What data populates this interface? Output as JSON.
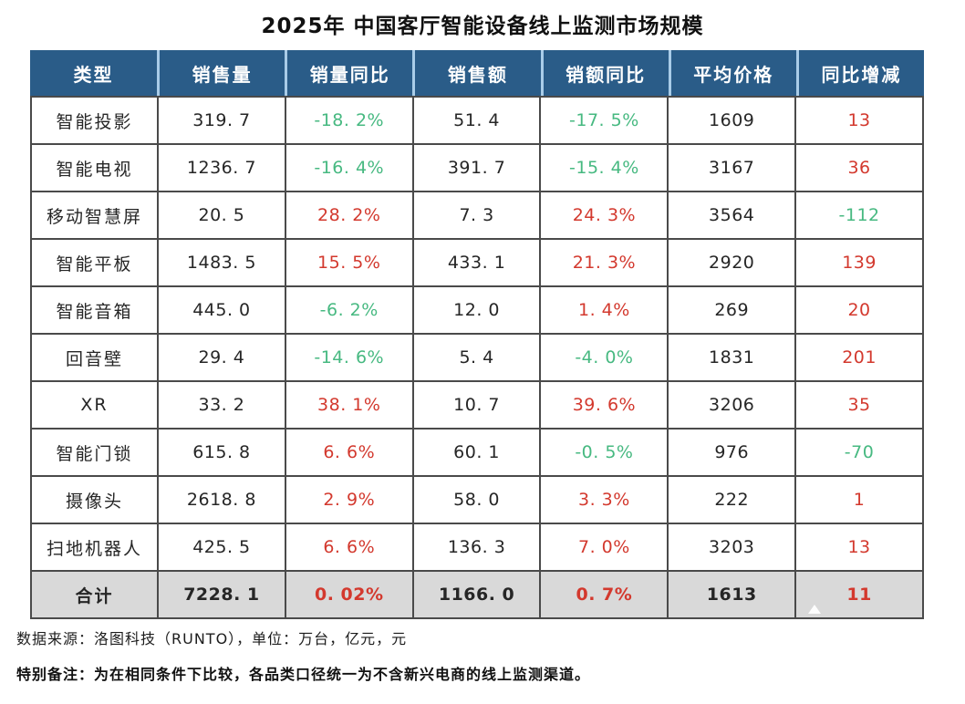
{
  "title": "2025年 中国客厅智能设备线上监测市场规模",
  "colors": {
    "header_bg": "#2A5C88",
    "header_text": "#FFFFFF",
    "header_divider": "#A9CCE8",
    "grid_border": "#4A4A4A",
    "total_row_bg": "#D9D9D9",
    "text": "#262626",
    "positive_red": "#D3392E",
    "negative_green": "#47B981"
  },
  "table": {
    "columns": [
      "类型",
      "销售量",
      "销量同比",
      "销售额",
      "销额同比",
      "平均价格",
      "同比增减"
    ],
    "rows": [
      {
        "label": "智能投影",
        "is_total": false,
        "cells": [
          {
            "text": "319. 7",
            "color": "dark"
          },
          {
            "text": "-18. 2%",
            "color": "green"
          },
          {
            "text": "51. 4",
            "color": "dark"
          },
          {
            "text": "-17. 5%",
            "color": "green"
          },
          {
            "text": "1609",
            "color": "dark"
          },
          {
            "text": "13",
            "color": "red"
          }
        ]
      },
      {
        "label": "智能电视",
        "is_total": false,
        "cells": [
          {
            "text": "1236. 7",
            "color": "dark"
          },
          {
            "text": "-16. 4%",
            "color": "green"
          },
          {
            "text": "391. 7",
            "color": "dark"
          },
          {
            "text": "-15. 4%",
            "color": "green"
          },
          {
            "text": "3167",
            "color": "dark"
          },
          {
            "text": "36",
            "color": "red"
          }
        ]
      },
      {
        "label": "移动智慧屏",
        "is_total": false,
        "cells": [
          {
            "text": "20. 5",
            "color": "dark"
          },
          {
            "text": "28. 2%",
            "color": "red"
          },
          {
            "text": "7. 3",
            "color": "dark"
          },
          {
            "text": "24. 3%",
            "color": "red"
          },
          {
            "text": "3564",
            "color": "dark"
          },
          {
            "text": "-112",
            "color": "green"
          }
        ]
      },
      {
        "label": "智能平板",
        "is_total": false,
        "cells": [
          {
            "text": "1483. 5",
            "color": "dark"
          },
          {
            "text": "15. 5%",
            "color": "red"
          },
          {
            "text": "433. 1",
            "color": "dark"
          },
          {
            "text": "21. 3%",
            "color": "red"
          },
          {
            "text": "2920",
            "color": "dark"
          },
          {
            "text": "139",
            "color": "red"
          }
        ]
      },
      {
        "label": "智能音箱",
        "is_total": false,
        "cells": [
          {
            "text": "445. 0",
            "color": "dark"
          },
          {
            "text": "-6. 2%",
            "color": "green"
          },
          {
            "text": "12. 0",
            "color": "dark"
          },
          {
            "text": "1. 4%",
            "color": "red"
          },
          {
            "text": "269",
            "color": "dark"
          },
          {
            "text": "20",
            "color": "red"
          }
        ]
      },
      {
        "label": "回音壁",
        "is_total": false,
        "cells": [
          {
            "text": "29. 4",
            "color": "dark"
          },
          {
            "text": "-14. 6%",
            "color": "green"
          },
          {
            "text": "5. 4",
            "color": "dark"
          },
          {
            "text": "-4. 0%",
            "color": "green"
          },
          {
            "text": "1831",
            "color": "dark"
          },
          {
            "text": "201",
            "color": "red"
          }
        ]
      },
      {
        "label": "XR",
        "is_total": false,
        "cells": [
          {
            "text": "33. 2",
            "color": "dark"
          },
          {
            "text": "38. 1%",
            "color": "red"
          },
          {
            "text": "10. 7",
            "color": "dark"
          },
          {
            "text": "39. 6%",
            "color": "red"
          },
          {
            "text": "3206",
            "color": "dark"
          },
          {
            "text": "35",
            "color": "red"
          }
        ]
      },
      {
        "label": "智能门锁",
        "is_total": false,
        "cells": [
          {
            "text": "615. 8",
            "color": "dark"
          },
          {
            "text": "6. 6%",
            "color": "red"
          },
          {
            "text": "60. 1",
            "color": "dark"
          },
          {
            "text": "-0. 5%",
            "color": "green"
          },
          {
            "text": "976",
            "color": "dark"
          },
          {
            "text": "-70",
            "color": "green"
          }
        ]
      },
      {
        "label": "摄像头",
        "is_total": false,
        "cells": [
          {
            "text": "2618. 8",
            "color": "dark"
          },
          {
            "text": "2. 9%",
            "color": "red"
          },
          {
            "text": "58. 0",
            "color": "dark"
          },
          {
            "text": "3. 3%",
            "color": "red"
          },
          {
            "text": "222",
            "color": "dark"
          },
          {
            "text": "1",
            "color": "red"
          }
        ]
      },
      {
        "label": "扫地机器人",
        "is_total": false,
        "cells": [
          {
            "text": "425. 5",
            "color": "dark"
          },
          {
            "text": "6. 6%",
            "color": "red"
          },
          {
            "text": "136. 3",
            "color": "dark"
          },
          {
            "text": "7. 0%",
            "color": "red"
          },
          {
            "text": "3203",
            "color": "dark"
          },
          {
            "text": "13",
            "color": "red"
          }
        ]
      },
      {
        "label": "合计",
        "is_total": true,
        "cells": [
          {
            "text": "7228. 1",
            "color": "dark"
          },
          {
            "text": "0. 02%",
            "color": "red"
          },
          {
            "text": "1166. 0",
            "color": "dark"
          },
          {
            "text": "0. 7%",
            "color": "red"
          },
          {
            "text": "1613",
            "color": "dark"
          },
          {
            "text": "11",
            "color": "red"
          }
        ]
      }
    ]
  },
  "footer": {
    "source_line": "数据来源：洛图科技（RUNTO），单位：万台，亿元，元",
    "note_line": "特别备注：为在相同条件下比较，各品类口径统一为不含新兴电商的线上监测渠道。"
  },
  "chart_data": {
    "type": "table",
    "title": "2025年 中国客厅智能设备线上监测市场规模",
    "columns": [
      "类型",
      "销售量",
      "销量同比(%)",
      "销售额",
      "销额同比(%)",
      "平均价格",
      "同比增减"
    ],
    "rows": [
      [
        "智能投影",
        319.7,
        -18.2,
        51.4,
        -17.5,
        1609,
        13
      ],
      [
        "智能电视",
        1236.7,
        -16.4,
        391.7,
        -15.4,
        3167,
        36
      ],
      [
        "移动智慧屏",
        20.5,
        28.2,
        7.3,
        24.3,
        3564,
        -112
      ],
      [
        "智能平板",
        1483.5,
        15.5,
        433.1,
        21.3,
        2920,
        139
      ],
      [
        "智能音箱",
        445.0,
        -6.2,
        12.0,
        1.4,
        269,
        20
      ],
      [
        "回音壁",
        29.4,
        -14.6,
        5.4,
        -4.0,
        1831,
        201
      ],
      [
        "XR",
        33.2,
        38.1,
        10.7,
        39.6,
        3206,
        35
      ],
      [
        "智能门锁",
        615.8,
        6.6,
        60.1,
        -0.5,
        976,
        -70
      ],
      [
        "摄像头",
        2618.8,
        2.9,
        58.0,
        3.3,
        222,
        1
      ],
      [
        "扫地机器人",
        425.5,
        6.6,
        136.3,
        7.0,
        3203,
        13
      ],
      [
        "合计",
        7228.1,
        0.02,
        1166.0,
        0.7,
        1613,
        11
      ]
    ],
    "units": [
      "万台",
      "亿元",
      "元"
    ],
    "source": "洛图科技（RUNTO）",
    "color_coding": "负同比为绿色，正同比为红色；同比增减列按涨跌着色"
  }
}
